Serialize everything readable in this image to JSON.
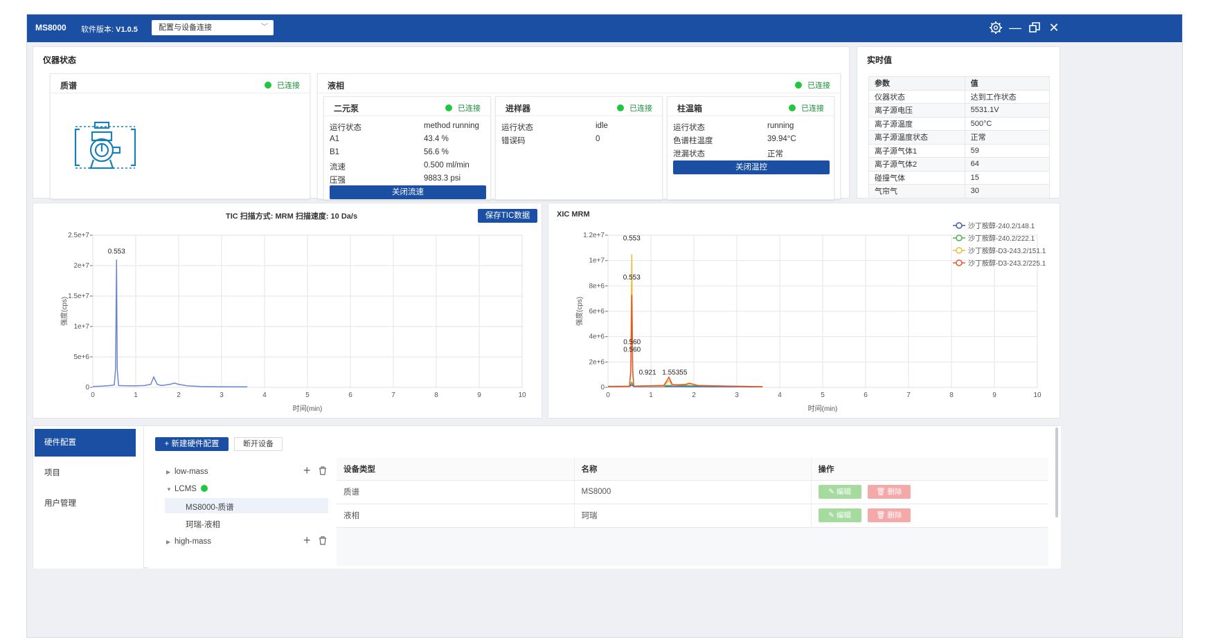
{
  "titlebar": {
    "app_name": "MS8000",
    "version_label": "软件版本:",
    "version_value": "V1.0.5",
    "connection_select": "配置与设备连接",
    "icons": [
      "gear-icon",
      "minimize-icon",
      "restore-icon",
      "close-icon"
    ]
  },
  "instrument": {
    "title": "仪器状态",
    "ms": {
      "title": "质谱",
      "status": "已连接",
      "icon": "mass-spectrometer-icon"
    },
    "lc": {
      "title": "液相",
      "status": "已连接",
      "pump": {
        "title": "二元泵",
        "status": "已连接",
        "rows": [
          {
            "k": "运行状态",
            "v": "method running"
          },
          {
            "k": "A1",
            "v": "43.4 %"
          },
          {
            "k": "B1",
            "v": "56.6 %"
          },
          {
            "k": "流速",
            "v": "0.500 ml/min"
          },
          {
            "k": "压强",
            "v": "9883.3 psi"
          }
        ],
        "button": "关闭流速"
      },
      "sampler": {
        "title": "进样器",
        "status": "已连接",
        "rows": [
          {
            "k": "运行状态",
            "v": "idle"
          },
          {
            "k": "错误码",
            "v": "0"
          }
        ]
      },
      "oven": {
        "title": "柱温箱",
        "status": "已连接",
        "rows": [
          {
            "k": "运行状态",
            "v": "running"
          },
          {
            "k": "色谱柱温度",
            "v": "39.94°C"
          },
          {
            "k": "泄漏状态",
            "v": "正常"
          }
        ],
        "button": "关闭温控"
      }
    }
  },
  "realtime": {
    "title": "实时值",
    "headers": [
      "参数",
      "值"
    ],
    "rows": [
      [
        "仪器状态",
        "达到工作状态"
      ],
      [
        "离子源电压",
        "5531.1V"
      ],
      [
        "离子源温度",
        "500°C"
      ],
      [
        "离子源温度状态",
        "正常"
      ],
      [
        "离子源气体1",
        "59"
      ],
      [
        "离子源气体2",
        "64"
      ],
      [
        "碰撞气体",
        "15"
      ],
      [
        "气帘气",
        "30"
      ]
    ]
  },
  "tic": {
    "title": "TIC 扫描方式: MRM 扫描速度: 10 Da/s",
    "save_button": "保存TIC数据"
  },
  "xic": {
    "title": "XIC MRM"
  },
  "chart_data": [
    {
      "type": "line",
      "title": "TIC 扫描方式: MRM 扫描速度: 10 Da/s",
      "xlabel": "时间(min)",
      "ylabel": "强度(cps)",
      "xlim": [
        0,
        10
      ],
      "ylim": [
        0,
        25000000
      ],
      "x_ticks": [
        "0",
        "1",
        "2",
        "3",
        "4",
        "5",
        "6",
        "7",
        "8",
        "9",
        "10"
      ],
      "y_ticks": [
        "0",
        "5e+6",
        "1e+7",
        "1.5e+7",
        "2e+7",
        "2.5e+7"
      ],
      "grid": true,
      "annotations": [
        {
          "x": 0.553,
          "y": 22000000,
          "text": "0.553"
        }
      ],
      "series": [
        {
          "color": "#6a86d0",
          "x": [
            0,
            0.2,
            0.4,
            0.5,
            0.53,
            0.553,
            0.57,
            0.6,
            0.8,
            1.0,
            1.2,
            1.35,
            1.42,
            1.5,
            1.6,
            1.8,
            1.9,
            2.0,
            2.2,
            2.5,
            3.0,
            3.6
          ],
          "y": [
            150000,
            200000,
            300000,
            400000,
            3000000,
            21000000,
            3000000,
            300000,
            250000,
            250000,
            300000,
            500000,
            1700000,
            500000,
            300000,
            500000,
            700000,
            500000,
            250000,
            150000,
            100000,
            80000
          ]
        }
      ]
    },
    {
      "type": "line",
      "title": "XIC MRM",
      "xlabel": "时间(min)",
      "ylabel": "强度(cps)",
      "xlim": [
        0,
        10
      ],
      "ylim": [
        0,
        12000000
      ],
      "x_ticks": [
        "0",
        "1",
        "2",
        "3",
        "4",
        "5",
        "6",
        "7",
        "8",
        "9",
        "10"
      ],
      "y_ticks": [
        "0",
        "2e+6",
        "4e+6",
        "6e+6",
        "8e+6",
        "1e+7",
        "1.2e+7"
      ],
      "grid": true,
      "legend": "top-right",
      "annotations": [
        {
          "x": 0.553,
          "y": 11600000,
          "text": "0.553"
        },
        {
          "x": 0.553,
          "y": 8500000,
          "text": "0.553"
        },
        {
          "x": 0.56,
          "y": 3400000,
          "text": "0.560"
        },
        {
          "x": 0.56,
          "y": 2800000,
          "text": "0.560"
        },
        {
          "x": 0.921,
          "y": 1000000,
          "text": "0.921"
        },
        {
          "x": 1.55355,
          "y": 1000000,
          "text": "1.55355"
        }
      ],
      "series": [
        {
          "name": "沙丁胺醇-240.2/148.1",
          "color": "#3f5bb5",
          "x": [
            0,
            0.5,
            0.553,
            0.6,
            1.5,
            3.6
          ],
          "y": [
            50000,
            60000,
            200000,
            60000,
            60000,
            40000
          ]
        },
        {
          "name": "沙丁胺醇-240.2/222.1",
          "color": "#4caf50",
          "x": [
            0,
            0.5,
            0.553,
            0.6,
            1.4,
            2.0,
            3.6
          ],
          "y": [
            80000,
            100000,
            400000,
            100000,
            150000,
            120000,
            60000
          ]
        },
        {
          "name": "沙丁胺醇-D3-243.2/151.1",
          "color": "#f0b93a",
          "x": [
            0,
            0.5,
            0.53,
            0.553,
            0.575,
            0.6,
            1.3,
            1.42,
            1.5,
            1.8,
            1.9,
            2.1,
            3.6
          ],
          "y": [
            50000,
            80000,
            1500000,
            10500000,
            1500000,
            100000,
            100000,
            550000,
            150000,
            250000,
            350000,
            150000,
            50000
          ]
        },
        {
          "name": "沙丁胺醇-D3-243.2/225.1",
          "color": "#e8532b",
          "x": [
            0,
            0.5,
            0.53,
            0.553,
            0.575,
            0.6,
            1.3,
            1.42,
            1.5,
            1.8,
            1.9,
            2.1,
            3.6
          ],
          "y": [
            50000,
            80000,
            1200000,
            7300000,
            1200000,
            100000,
            150000,
            800000,
            200000,
            200000,
            300000,
            150000,
            50000
          ]
        }
      ]
    }
  ],
  "bottom": {
    "sidebar": [
      "硬件配置",
      "项目",
      "用户管理"
    ],
    "new_button": "+ 新建硬件配置",
    "disconnect_button": "断开设备",
    "tree": [
      {
        "label": "low-mass",
        "level": 0,
        "expanded": false,
        "actions": true
      },
      {
        "label": "LCMS",
        "level": 0,
        "expanded": true,
        "connected": true
      },
      {
        "label": "MS8000-质谱",
        "level": 1,
        "selected": true
      },
      {
        "label": "珂瑞-液相",
        "level": 1
      },
      {
        "label": "high-mass",
        "level": 0,
        "expanded": false,
        "actions": true
      }
    ],
    "table": {
      "headers": [
        "设备类型",
        "名称",
        "操作"
      ],
      "rows": [
        {
          "type": "质谱",
          "name": "MS8000"
        },
        {
          "type": "液相",
          "name": "珂瑞"
        }
      ],
      "edit_label": "编辑",
      "delete_label": "删除"
    }
  },
  "colors": {
    "primary": "#1b4fa3",
    "connected": "#1fc83e",
    "edit": "#a6dba0",
    "delete": "#f4a8a8"
  }
}
